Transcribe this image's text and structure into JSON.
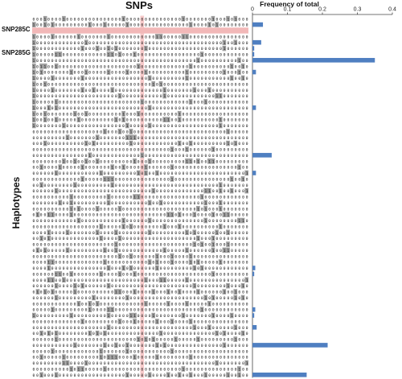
{
  "colors": {
    "bar": "#4f7fc1",
    "minor_allele_cell": "#9e9e9e",
    "highlight_row": "#f2b8b8",
    "highlight_column": "#f6c9c9",
    "axis": "#444444"
  },
  "labels": {
    "snps_title": "SNPs",
    "freq_title": "Frequency of total",
    "group_c": "SNP285C",
    "group_g": "SNP285G",
    "y_axis": "Haplotypes"
  },
  "chart_data": {
    "type": "bar",
    "orientation": "horizontal",
    "xlabel": "Frequency of total",
    "xlim": [
      0,
      0.4
    ],
    "xticks": [
      "0",
      "0.1",
      "0.2",
      "0.3",
      "0.4"
    ],
    "grid": false,
    "haplotype_groups": [
      "SNP285C",
      "SNP285G"
    ],
    "values": [
      0,
      0.03,
      0,
      0,
      0.025,
      0.005,
      0.005,
      0.35,
      0,
      0.01,
      0,
      0,
      0,
      0,
      0,
      0.01,
      0,
      0,
      0,
      0,
      0,
      0,
      0,
      0.055,
      0,
      0,
      0.01,
      0,
      0,
      0,
      0,
      0,
      0,
      0,
      0,
      0,
      0,
      0,
      0,
      0,
      0,
      0,
      0.008,
      0.005,
      0,
      0,
      0,
      0,
      0,
      0.008,
      0.005,
      0,
      0.012,
      0,
      0,
      0.215,
      0,
      0,
      0,
      0,
      0.155
    ]
  }
}
